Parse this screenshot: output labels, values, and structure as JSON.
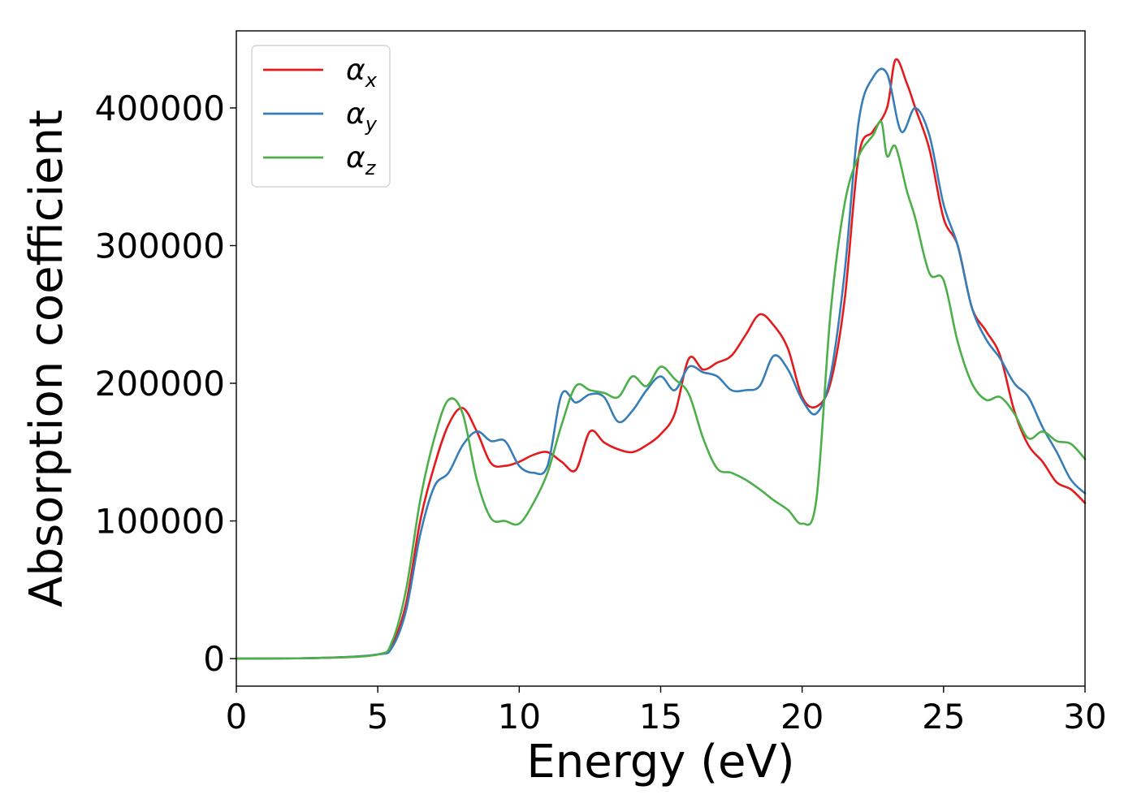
{
  "chart_data": {
    "type": "line",
    "xlabel": "Energy (eV)",
    "ylabel": "Absorption coefficient",
    "xlim": [
      0,
      30
    ],
    "ylim": [
      -20000,
      456000
    ],
    "xticks": [
      0,
      5,
      10,
      15,
      20,
      25,
      30
    ],
    "xtick_labels": [
      "0",
      "5",
      "10",
      "15",
      "20",
      "25",
      "30"
    ],
    "yticks": [
      0,
      100000,
      200000,
      300000,
      400000
    ],
    "ytick_labels": [
      "0",
      "100000",
      "200000",
      "300000",
      "400000"
    ],
    "grid": false,
    "legend_position": "upper left",
    "series": [
      {
        "name": "αx",
        "legend_base": "α",
        "legend_sub": "x",
        "color": "#e41a1c",
        "x": [
          0,
          3,
          5,
          5.5,
          6,
          6.5,
          7,
          7.5,
          8,
          8.5,
          9,
          9.5,
          10,
          10.5,
          11,
          11.5,
          12,
          12.5,
          13,
          13.5,
          14,
          14.5,
          15,
          15.5,
          16,
          16.5,
          17,
          17.5,
          18,
          18.5,
          19,
          19.5,
          20,
          20.5,
          21,
          21.5,
          22,
          22.5,
          23,
          23.3,
          23.7,
          24,
          24.5,
          25,
          25.5,
          26,
          26.5,
          27,
          27.5,
          28,
          28.5,
          29,
          29.5,
          30
        ],
        "y": [
          0,
          500,
          3000,
          10000,
          40000,
          100000,
          140000,
          170000,
          182000,
          165000,
          142000,
          140000,
          143000,
          148000,
          150000,
          143000,
          137000,
          165000,
          157000,
          152000,
          150000,
          155000,
          163000,
          178000,
          218000,
          210000,
          215000,
          220000,
          235000,
          250000,
          242000,
          225000,
          190000,
          183000,
          200000,
          260000,
          365000,
          383000,
          400000,
          435000,
          418000,
          400000,
          370000,
          320000,
          300000,
          255000,
          238000,
          220000,
          180000,
          155000,
          143000,
          128000,
          123000,
          113000
        ]
      },
      {
        "name": "αy",
        "legend_base": "α",
        "legend_sub": "y",
        "color": "#377eb8",
        "x": [
          0,
          3,
          5,
          5.5,
          6,
          6.5,
          7,
          7.5,
          8,
          8.5,
          9,
          9.5,
          10,
          10.5,
          11,
          11.5,
          12,
          12.5,
          13,
          13.5,
          14,
          14.5,
          15,
          15.5,
          16,
          16.5,
          17,
          17.5,
          18,
          18.5,
          19,
          19.5,
          20,
          20.5,
          21,
          21.5,
          22,
          22.5,
          23,
          23.5,
          24,
          24.5,
          25,
          25.5,
          26,
          26.5,
          27,
          27.5,
          28,
          28.5,
          29,
          29.5,
          30
        ],
        "y": [
          0,
          500,
          3000,
          8000,
          35000,
          90000,
          125000,
          135000,
          155000,
          165000,
          158000,
          158000,
          140000,
          135000,
          140000,
          192000,
          186000,
          192000,
          190000,
          172000,
          180000,
          195000,
          205000,
          195000,
          212000,
          208000,
          205000,
          195000,
          195000,
          198000,
          220000,
          210000,
          188000,
          178000,
          205000,
          280000,
          390000,
          422000,
          425000,
          383000,
          400000,
          380000,
          330000,
          300000,
          255000,
          232000,
          218000,
          200000,
          190000,
          168000,
          150000,
          130000,
          120000
        ]
      },
      {
        "name": "αz",
        "legend_base": "α",
        "legend_sub": "z",
        "color": "#4daf4a",
        "x": [
          0,
          3,
          5,
          5.5,
          6,
          6.5,
          7,
          7.5,
          8,
          8.5,
          9,
          9.5,
          10,
          10.5,
          11,
          11.5,
          12,
          12.5,
          13,
          13.5,
          14,
          14.5,
          15,
          15.5,
          16,
          16.5,
          17,
          17.5,
          18,
          18.5,
          19,
          19.5,
          20,
          20.5,
          21,
          21.5,
          22,
          22.5,
          22.8,
          23,
          23.3,
          23.7,
          24,
          24.5,
          25,
          25.5,
          26,
          26.5,
          27,
          27.5,
          28,
          28.5,
          29,
          29.5,
          30
        ],
        "y": [
          0,
          500,
          3000,
          12000,
          50000,
          115000,
          160000,
          188000,
          178000,
          130000,
          102000,
          100000,
          98000,
          113000,
          135000,
          170000,
          198000,
          195000,
          193000,
          190000,
          205000,
          198000,
          212000,
          203000,
          192000,
          160000,
          138000,
          135000,
          130000,
          123000,
          115000,
          108000,
          98000,
          115000,
          250000,
          330000,
          365000,
          380000,
          390000,
          365000,
          372000,
          340000,
          320000,
          280000,
          275000,
          230000,
          200000,
          188000,
          190000,
          178000,
          160000,
          165000,
          158000,
          156000,
          145000
        ]
      }
    ]
  }
}
